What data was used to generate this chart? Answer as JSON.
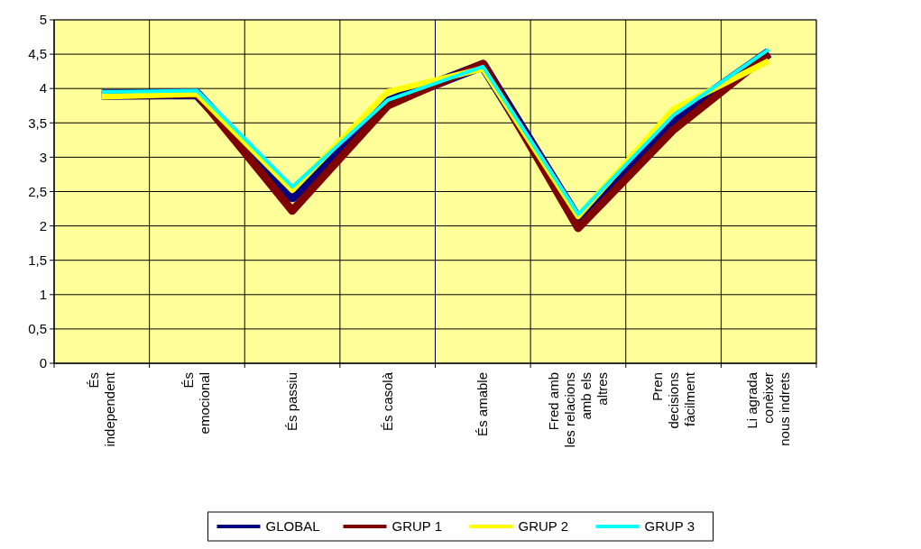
{
  "chart_data": {
    "type": "line",
    "categories": [
      "És independent",
      "És emocional",
      "És passiu",
      "És casolà",
      "És amable",
      "Fred amb les relacions amb els altres",
      "Pren decisions fàcilment",
      "Li agrada conèixer nous indrets"
    ],
    "series": [
      {
        "name": "GLOBAL",
        "color": "#000080",
        "values": [
          3.91,
          3.92,
          2.42,
          3.8,
          4.34,
          2.09,
          3.55,
          4.52
        ]
      },
      {
        "name": "GRUP 1",
        "color": "#800000",
        "values": [
          3.9,
          3.92,
          2.22,
          3.75,
          4.36,
          1.97,
          3.4,
          4.5
        ]
      },
      {
        "name": "GRUP 2",
        "color": "#ffff00",
        "values": [
          3.88,
          3.92,
          2.52,
          3.95,
          4.29,
          2.14,
          3.7,
          4.4
        ]
      },
      {
        "name": "GRUP 3",
        "color": "#00ffff",
        "values": [
          3.95,
          3.97,
          2.57,
          3.83,
          4.32,
          2.17,
          3.61,
          4.57
        ]
      }
    ],
    "ylim": [
      0,
      5
    ],
    "yticks": [
      0,
      {
        "value": 0.5,
        "label": "0,5"
      },
      1,
      {
        "value": 1.5,
        "label": "1,5"
      },
      2,
      {
        "value": 2.5,
        "label": "2,5"
      },
      3,
      {
        "value": 3.5,
        "label": "3,5"
      },
      4,
      {
        "value": 4.5,
        "label": "4,5"
      },
      5
    ],
    "grid": true,
    "legend": "bottom",
    "marker": "none",
    "line_style": "solid"
  }
}
